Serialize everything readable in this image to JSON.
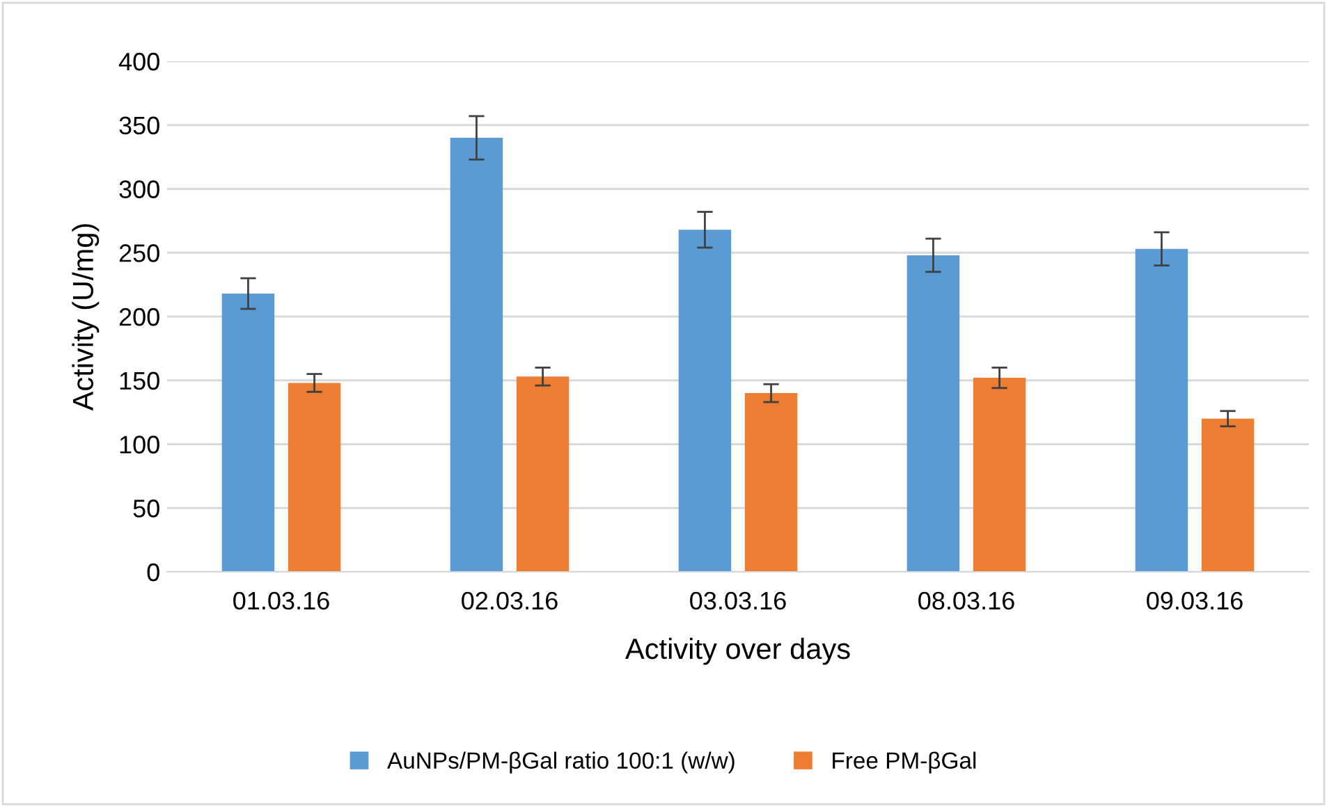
{
  "chart_data": {
    "type": "bar",
    "xlabel": "Activity over days",
    "ylabel": "Activity (U/mg)",
    "categories": [
      "01.03.16",
      "02.03.16",
      "03.03.16",
      "08.03.16",
      "09.03.16"
    ],
    "series": [
      {
        "name": "AuNPs/PM-βGal ratio 100:1 (w/w)",
        "color": "#5b9bd5",
        "values": [
          218,
          340,
          268,
          248,
          253
        ],
        "errors": [
          12,
          17,
          14,
          13,
          13
        ]
      },
      {
        "name": "Free PM-βGal",
        "color": "#ed7d31",
        "values": [
          148,
          153,
          140,
          152,
          120
        ],
        "errors": [
          7,
          7,
          7,
          8,
          6
        ]
      }
    ],
    "ylim": [
      0,
      400
    ],
    "yticks": [
      0,
      50,
      100,
      150,
      200,
      250,
      300,
      350,
      400
    ],
    "grid": "y",
    "legend": "bottom"
  }
}
